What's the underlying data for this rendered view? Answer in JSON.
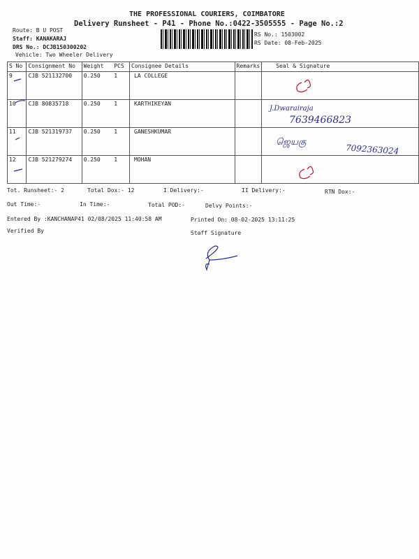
{
  "header": {
    "company": "THE PROFESSIONAL COURIERS, COIMBATORE",
    "subtitle": "Delivery Runsheet - P41 - Phone No.:0422-3505555 - Page No.:2",
    "route": "Route: B U POST",
    "staff": "Staff: KANAKARAJ",
    "drs_no": "DRS No.: DCJB150300202",
    "vehicle": "Vehicle: Two Wheeler Delivery",
    "rs_no": "RS No.: 1503002",
    "rs_date": "RS Date: 08-Feb-2025"
  },
  "table": {
    "columns": [
      "S No",
      "Consignment No",
      "Weight",
      "PCS",
      "Consignee Details",
      "Remarks",
      "Seal & Signature"
    ],
    "rows": [
      {
        "sno": "9",
        "consignment": "CJB 521132700",
        "weight": "0.250",
        "pcs": "1",
        "consignee": "LA COLLEGE",
        "remarks": "",
        "signature": ""
      },
      {
        "sno": "10",
        "consignment": "CJB 80835718",
        "weight": "0.250",
        "pcs": "1",
        "consignee": "KARTHIKEYAN",
        "remarks": "",
        "signature": "J.Dwarairaja 7639466823"
      },
      {
        "sno": "11",
        "consignment": "CJB 521319737",
        "weight": "0.250",
        "pcs": "1",
        "consignee": "GANESHKUMAR",
        "remarks": "",
        "signature": "7092363024"
      },
      {
        "sno": "12",
        "consignment": "CJB 521279274",
        "weight": "0.250",
        "pcs": "1",
        "consignee": "MOHAN",
        "remarks": "",
        "signature": ""
      }
    ]
  },
  "handwriting": {
    "row10_name": "J.Dwarairaja",
    "row10_phone": "7639466823",
    "row11_phone": "7092363024"
  },
  "summary": {
    "tot_runsheet": "Tot. Runsheet:- 2",
    "total_dox": "Total Dox:-   12",
    "i_delivery": "I Delivery:-",
    "ii_delivery": "II Delivery:-",
    "rtn_dox": "RTN Dox:-",
    "out_time": "Out Time:-",
    "in_time": "In Time:-",
    "total_pod": "Total POD:-",
    "delvy_points": "Delvy Points:-",
    "entered_by": "Entered By :KANCHANAP41 02/08/2025 11:40:58 AM",
    "printed_on": "Printed On: 08-02-2025 13:11:25",
    "verified_by": "Verified By",
    "staff_signature": "Staff Signature"
  },
  "colors": {
    "ink": "#2b2f8a",
    "stamp": "#c0203a"
  }
}
